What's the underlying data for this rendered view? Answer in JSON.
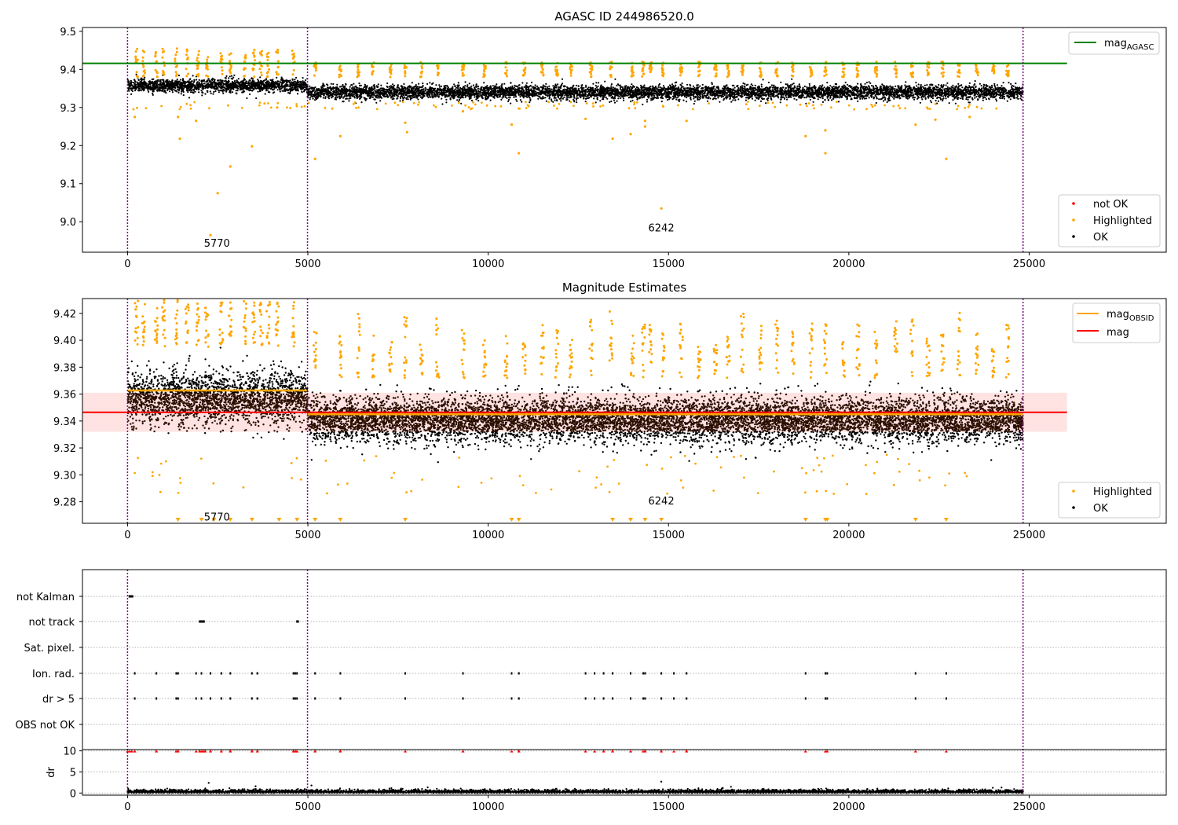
{
  "chart_data": [
    {
      "type": "scatter",
      "title": "AGASC ID 244986520.0",
      "xlim": [
        -1250,
        28800
      ],
      "ylim": [
        8.92,
        9.51
      ],
      "xticks": [
        0,
        5000,
        10000,
        15000,
        20000,
        25000
      ],
      "yticks": [
        9.0,
        9.1,
        9.2,
        9.3,
        9.4,
        9.5
      ],
      "obsid_boundaries": [
        0,
        4990,
        24830
      ],
      "obsid_labels": [
        {
          "x": 2480,
          "y": 8.945,
          "text": "5770"
        },
        {
          "x": 14800,
          "y": 8.985,
          "text": "6242"
        }
      ],
      "reference_line": {
        "name": "mag_AGASC",
        "y": 9.416,
        "x_range": [
          -1250,
          26050
        ],
        "color": "#008000"
      },
      "legend_lines": [
        {
          "label": "mag",
          "sub": "AGASC",
          "color": "#008000"
        }
      ],
      "legend_points": [
        {
          "label": "not OK",
          "color": "#ff0000"
        },
        {
          "label": "Highlighted",
          "color": "#ffa500"
        },
        {
          "label": "OK",
          "color": "#000000"
        }
      ],
      "segments": [
        {
          "x_range": [
            0,
            4990
          ],
          "center": 9.358,
          "spread": 0.012
        },
        {
          "x_range": [
            4990,
            24830
          ],
          "center": 9.34,
          "spread": 0.013
        }
      ],
      "highlighted_bursts_x": [
        250,
        450,
        800,
        1000,
        1350,
        1650,
        1950,
        2200,
        2600,
        2850,
        3250,
        3500,
        3700,
        3900,
        4150,
        4600,
        5200,
        5900,
        6400,
        6800,
        7300,
        7700,
        8150,
        8600,
        9300,
        9900,
        10500,
        11000,
        11500,
        11900,
        12300,
        12850,
        13400,
        14000,
        14300,
        14500,
        14850,
        15350,
        15850,
        16300,
        16650,
        17050,
        17550,
        18000,
        18450,
        18950,
        19350,
        19850,
        20250,
        20750,
        21300,
        21750,
        22200,
        22600,
        23050,
        23550,
        24000,
        24400
      ],
      "highlighted_outliers": [
        {
          "x": 200,
          "y": 9.275
        },
        {
          "x": 1400,
          "y": 9.275
        },
        {
          "x": 1450,
          "y": 9.218
        },
        {
          "x": 1900,
          "y": 9.265
        },
        {
          "x": 2300,
          "y": 8.965
        },
        {
          "x": 2500,
          "y": 9.075
        },
        {
          "x": 2850,
          "y": 9.145
        },
        {
          "x": 3450,
          "y": 9.198
        },
        {
          "x": 4150,
          "y": 9.3
        },
        {
          "x": 5200,
          "y": 9.165
        },
        {
          "x": 5900,
          "y": 9.225
        },
        {
          "x": 7700,
          "y": 9.26
        },
        {
          "x": 7750,
          "y": 9.235
        },
        {
          "x": 9300,
          "y": 9.29
        },
        {
          "x": 10650,
          "y": 9.255
        },
        {
          "x": 10850,
          "y": 9.18
        },
        {
          "x": 12700,
          "y": 9.27
        },
        {
          "x": 13450,
          "y": 9.218
        },
        {
          "x": 13950,
          "y": 9.23
        },
        {
          "x": 14350,
          "y": 9.265
        },
        {
          "x": 14350,
          "y": 9.25
        },
        {
          "x": 14800,
          "y": 9.035
        },
        {
          "x": 15500,
          "y": 9.265
        },
        {
          "x": 18800,
          "y": 9.225
        },
        {
          "x": 19350,
          "y": 9.18
        },
        {
          "x": 19350,
          "y": 9.24
        },
        {
          "x": 21850,
          "y": 9.255
        },
        {
          "x": 22400,
          "y": 9.268
        },
        {
          "x": 22700,
          "y": 9.165
        },
        {
          "x": 23350,
          "y": 9.275
        }
      ]
    },
    {
      "type": "scatter",
      "title": "Magnitude Estimates",
      "xlim": [
        -1250,
        28800
      ],
      "ylim": [
        9.264,
        9.431
      ],
      "xticks": [
        0,
        5000,
        10000,
        15000,
        20000,
        25000
      ],
      "yticks": [
        9.28,
        9.3,
        9.32,
        9.34,
        9.36,
        9.38,
        9.4,
        9.42
      ],
      "obsid_boundaries": [
        0,
        4990,
        24830
      ],
      "obsid_labels": [
        {
          "x": 2480,
          "y": 9.269,
          "text": "5770"
        },
        {
          "x": 14800,
          "y": 9.281,
          "text": "6242"
        }
      ],
      "band": {
        "y_range": [
          9.332,
          9.361
        ],
        "x_range": [
          -1250,
          26050
        ],
        "color": "#ffcccc"
      },
      "mag_line": {
        "name": "mag",
        "y": 9.3465,
        "x_range": [
          -1250,
          26050
        ],
        "color": "#ff0000"
      },
      "mag_obsid_lines": [
        {
          "x_range": [
            0,
            4990
          ],
          "y": 9.3627,
          "color": "#ffa500"
        },
        {
          "x_range": [
            4990,
            24830
          ],
          "y": 9.345,
          "color": "#ffa500"
        }
      ],
      "legend_lines": [
        {
          "label": "mag",
          "sub": "OBSID",
          "color": "#ffa500"
        },
        {
          "label": "mag",
          "sub": "",
          "color": "#ff0000"
        }
      ],
      "legend_points": [
        {
          "label": "Highlighted",
          "color": "#ffa500"
        },
        {
          "label": "OK",
          "color": "#000000"
        }
      ],
      "segments": [
        {
          "x_range": [
            0,
            4990
          ],
          "center": 9.357,
          "spread": 0.013
        },
        {
          "x_range": [
            4990,
            24830
          ],
          "center": 9.341,
          "spread": 0.011
        }
      ],
      "below_limit_markers_x": [
        1400,
        2050,
        2400,
        2850,
        3450,
        4200,
        4700,
        5200,
        5900,
        7700,
        10650,
        10850,
        13450,
        13950,
        14350,
        14800,
        18800,
        19350,
        19400,
        21850,
        22700
      ]
    },
    {
      "type": "scatter",
      "title": "",
      "xlim": [
        -1250,
        28800
      ],
      "xticks": [
        0,
        5000,
        10000,
        15000,
        20000,
        25000
      ],
      "obsid_boundaries": [
        0,
        4990,
        24830
      ],
      "flag_rows": [
        "not Kalman",
        "not track",
        "Sat. pixel.",
        "Ion. rad.",
        "dr > 5",
        "OBS not OK"
      ],
      "flag_points": {
        "not Kalman": [
          50,
          80,
          110,
          140
        ],
        "not track": [
          2000,
          2030,
          2060,
          2090,
          2120,
          4700,
          4730
        ],
        "Sat. pixel.": [],
        "Ion. rad.": [
          200,
          800,
          1350,
          1400,
          1900,
          2050,
          2300,
          2600,
          2850,
          3450,
          3600,
          4600,
          4650,
          4700,
          5200,
          5900,
          7700,
          9300,
          10650,
          10850,
          12700,
          12950,
          13200,
          13450,
          13950,
          14300,
          14350,
          14800,
          15150,
          15500,
          18800,
          19350,
          19400,
          21850,
          22700
        ],
        "dr > 5": [
          200,
          800,
          1350,
          1400,
          1900,
          2050,
          2300,
          2600,
          2850,
          3450,
          3600,
          4600,
          4650,
          4700,
          5200,
          5900,
          7700,
          9300,
          10650,
          10850,
          12700,
          12950,
          13200,
          13450,
          13950,
          14300,
          14350,
          14800,
          15150,
          15500,
          18800,
          19350,
          19400,
          21850,
          22700
        ],
        "OBS not OK": []
      },
      "dr_panel": {
        "ylabel": "dr",
        "ylim": [
          -0.5,
          10.3
        ],
        "yticks": [
          0,
          5,
          10
        ],
        "capped_value": 10,
        "capped_x": [
          0,
          60,
          120,
          200,
          800,
          1350,
          1400,
          1900,
          2000,
          2050,
          2100,
          2150,
          2300,
          2600,
          2850,
          3450,
          3600,
          4600,
          4650,
          4700,
          5200,
          5900,
          7700,
          9300,
          10650,
          10850,
          12700,
          12950,
          13200,
          13450,
          13950,
          14300,
          14350,
          14800,
          15150,
          15500,
          18800,
          19350,
          19400,
          21850,
          22700
        ],
        "outliers": [
          {
            "x": 2250,
            "y": 2.4
          },
          {
            "x": 14800,
            "y": 2.7
          },
          {
            "x": 5100,
            "y": 1.8
          },
          {
            "x": 3550,
            "y": 1.6
          }
        ]
      }
    }
  ]
}
